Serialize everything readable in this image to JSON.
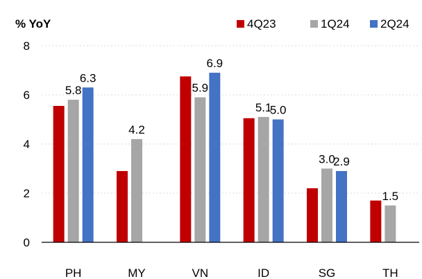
{
  "chart_data": {
    "type": "bar",
    "ylabel": "% YoY",
    "ylim": [
      0,
      8
    ],
    "yticks": [
      0,
      2,
      4,
      6,
      8
    ],
    "grid": true,
    "legend_position": "top-right",
    "categories": [
      "PH",
      "MY",
      "VN",
      "ID",
      "SG",
      "TH"
    ],
    "series": [
      {
        "name": "4Q23",
        "color": "#c00000",
        "values": [
          5.55,
          2.9,
          6.75,
          5.05,
          2.2,
          1.7
        ]
      },
      {
        "name": "1Q24",
        "color": "#a6a6a6",
        "values": [
          5.8,
          4.2,
          5.9,
          5.1,
          3.0,
          1.5
        ]
      },
      {
        "name": "2Q24",
        "color": "#4472c4",
        "values": [
          6.3,
          null,
          6.9,
          5.0,
          2.9,
          null
        ]
      }
    ],
    "data_labels": [
      {
        "category": "PH",
        "series": "1Q24",
        "text": "5.8"
      },
      {
        "category": "PH",
        "series": "2Q24",
        "text": "6.3"
      },
      {
        "category": "MY",
        "series": "1Q24",
        "text": "4.2"
      },
      {
        "category": "VN",
        "series": "1Q24",
        "text": "5.9"
      },
      {
        "category": "VN",
        "series": "2Q24",
        "text": "6.9"
      },
      {
        "category": "ID",
        "series": "1Q24",
        "text": "5.1"
      },
      {
        "category": "ID",
        "series": "2Q24",
        "text": "5.0"
      },
      {
        "category": "SG",
        "series": "1Q24",
        "text": "3.0"
      },
      {
        "category": "SG",
        "series": "2Q24",
        "text": "2.9"
      },
      {
        "category": "TH",
        "series": "1Q24",
        "text": "1.5"
      }
    ]
  }
}
